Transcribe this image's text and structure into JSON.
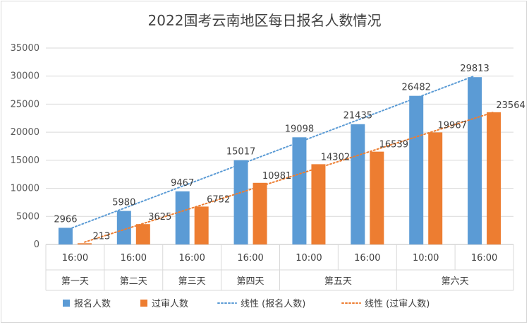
{
  "chart_data": {
    "type": "bar",
    "title": "2022国考云南地区每日报名人数情况",
    "xlabel": "",
    "ylabel": "",
    "ylim": [
      0,
      35000
    ],
    "yticks": [
      0,
      5000,
      10000,
      15000,
      20000,
      25000,
      30000,
      35000
    ],
    "grid": true,
    "legend_position": "bottom",
    "categories": [
      "16:00",
      "16:00",
      "16:00",
      "16:00",
      "10:00",
      "16:00",
      "10:00",
      "16:00"
    ],
    "groups": [
      {
        "label": "第一天",
        "span": 1
      },
      {
        "label": "第二天",
        "span": 1
      },
      {
        "label": "第三天",
        "span": 1
      },
      {
        "label": "第四天",
        "span": 1
      },
      {
        "label": "第五天",
        "span": 2
      },
      {
        "label": "第六天",
        "span": 2
      }
    ],
    "series": [
      {
        "name": "报名人数",
        "color": "#5b9bd5",
        "values": [
          2966,
          5980,
          9467,
          15017,
          19098,
          21435,
          26482,
          29813
        ]
      },
      {
        "name": "过审人数",
        "color": "#ed7d31",
        "values": [
          213,
          3625,
          6752,
          10981,
          14302,
          16539,
          19967,
          23564
        ]
      }
    ],
    "trendlines": [
      {
        "name": "线性 (报名人数)",
        "series": 0,
        "color": "#5b9bd5",
        "style": "dotted",
        "type": "linear"
      },
      {
        "name": "线性 (过审人数)",
        "series": 1,
        "color": "#ed7d31",
        "style": "dotted",
        "type": "linear"
      }
    ]
  }
}
